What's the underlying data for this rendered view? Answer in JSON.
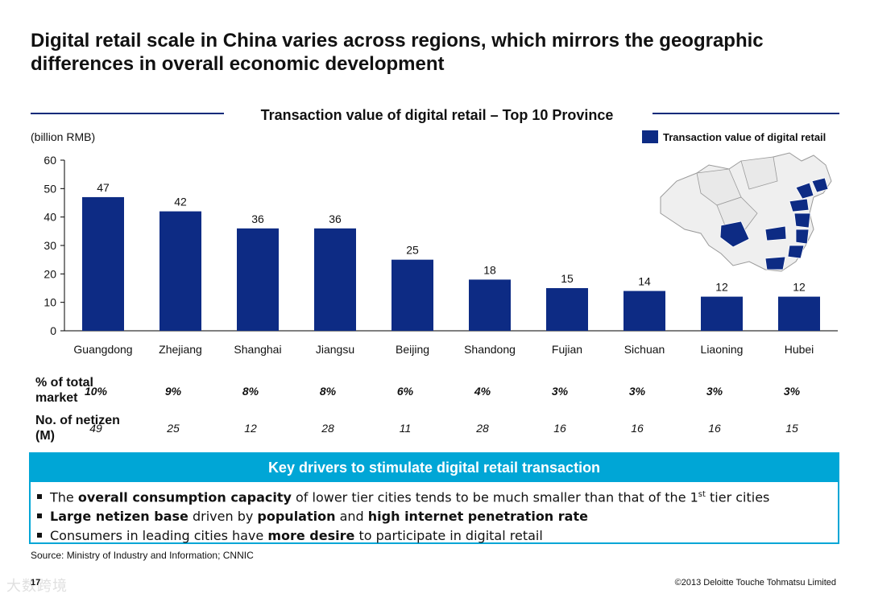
{
  "page": {
    "title": "Digital retail scale in China varies across regions, which mirrors the geographic differences in overall economic development"
  },
  "chart_data": {
    "type": "bar",
    "title": "Transaction value  of digital retail – Top 10 Province",
    "unit_label": "(billion RMB)",
    "legend": "Transaction value of digital retail",
    "legend_position": "top-right",
    "categories": [
      "Guangdong",
      "Zhejiang",
      "Shanghai",
      "Jiangsu",
      "Beijing",
      "Shandong",
      "Fujian",
      "Sichuan",
      "Liaoning",
      "Hubei"
    ],
    "values": [
      47,
      42,
      36,
      36,
      25,
      18,
      15,
      14,
      12,
      12
    ],
    "ylim": [
      0,
      60
    ],
    "yticks": [
      "0",
      "10",
      "20",
      "30",
      "40",
      "50",
      "60"
    ],
    "bar_color": "#0d2b84",
    "grid": false
  },
  "stats": {
    "share": {
      "label": "% of total market",
      "values": [
        "10%",
        "9%",
        "8%",
        "8%",
        "6%",
        "4%",
        "3%",
        "3%",
        "3%",
        "3%"
      ]
    },
    "netizen": {
      "label": "No. of netizen (M)",
      "values": [
        "49",
        "25",
        "12",
        "28",
        "11",
        "28",
        "16",
        "16",
        "16",
        "15"
      ]
    }
  },
  "drivers": {
    "heading": "Key drivers to stimulate digital retail transaction",
    "accent_color": "#00a6d6",
    "bullets": [
      {
        "pre": "The ",
        "b1": "overall consumption capacity",
        "mid": " of lower tier cities tends to be much smaller than that of the 1",
        "sup": "st",
        "post": " tier cities"
      },
      {
        "b1": "Large netizen base",
        "mid": " driven by ",
        "b2": "population",
        "mid2": " and ",
        "b3": "high internet penetration rate"
      },
      {
        "pre": "Consumers in leading cities have ",
        "b1": "more desire",
        "post": " to participate in digital retail"
      }
    ]
  },
  "footer": {
    "source": "Source: Ministry of Industry and Information; CNNIC",
    "page_number": "17",
    "watermark": "大数跨境",
    "copyright": "©2013 Deloitte Touche Tohmatsu Limited"
  }
}
